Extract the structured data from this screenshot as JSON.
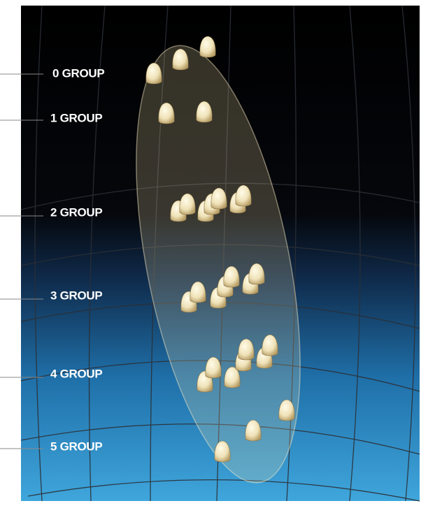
{
  "labels": [
    "0 GROUP",
    "1 GROUP",
    "2 GROUP",
    "3 GROUP",
    "4 GROUP",
    "5 GROUP"
  ]
}
